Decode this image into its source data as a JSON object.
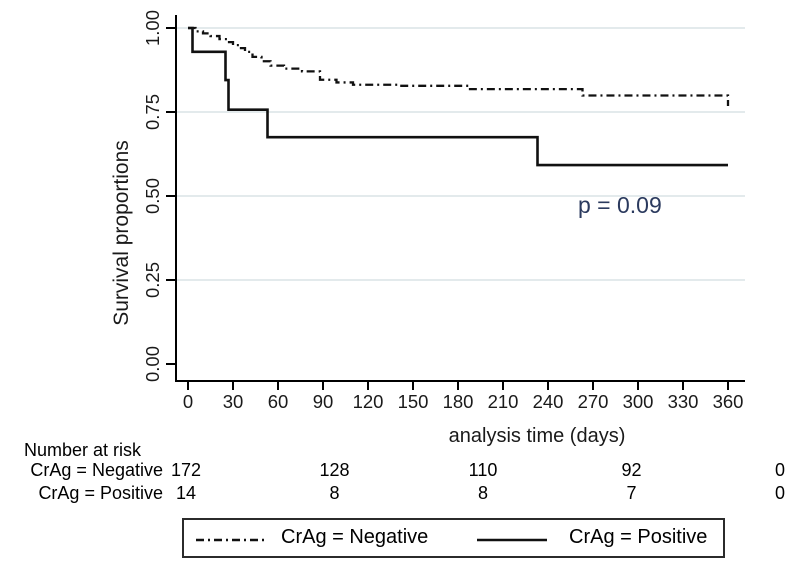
{
  "chart_data": {
    "type": "line",
    "subtype": "kaplan-meier-step",
    "title": "",
    "xlabel": "analysis time (days)",
    "ylabel": "Survival proportions",
    "xlim": [
      0,
      360
    ],
    "ylim": [
      0.0,
      1.0
    ],
    "x_ticks": [
      0,
      30,
      60,
      90,
      120,
      150,
      180,
      210,
      240,
      270,
      300,
      330,
      360
    ],
    "y_ticks": [
      "0.00",
      "0.25",
      "0.50",
      "0.75",
      "1.00"
    ],
    "grid": "horizontal-light",
    "legend_position": "bottom",
    "annotation": {
      "text": "p = 0.09",
      "color": "#2b3a5e"
    },
    "series": [
      {
        "name": "CrAg = Negative",
        "line_style": "dash-dot",
        "color": "#111111",
        "points": [
          [
            0,
            1.0
          ],
          [
            5,
            0.99
          ],
          [
            10,
            0.984
          ],
          [
            15,
            0.976
          ],
          [
            21,
            0.967
          ],
          [
            26,
            0.958
          ],
          [
            30,
            0.949
          ],
          [
            34,
            0.94
          ],
          [
            38,
            0.929
          ],
          [
            43,
            0.914
          ],
          [
            49,
            0.901
          ],
          [
            55,
            0.888
          ],
          [
            64,
            0.879
          ],
          [
            76,
            0.871
          ],
          [
            88,
            0.846
          ],
          [
            99,
            0.838
          ],
          [
            110,
            0.831
          ],
          [
            140,
            0.828
          ],
          [
            188,
            0.818
          ],
          [
            263,
            0.799
          ],
          [
            357,
            0.799
          ],
          [
            360,
            0.768
          ]
        ]
      },
      {
        "name": "CrAg = Positive",
        "line_style": "solid",
        "color": "#111111",
        "points": [
          [
            0,
            1.0
          ],
          [
            3,
            0.929
          ],
          [
            25,
            0.845
          ],
          [
            27,
            0.757
          ],
          [
            53,
            0.675
          ],
          [
            233,
            0.592
          ],
          [
            360,
            0.592
          ]
        ]
      }
    ]
  },
  "risk_table": {
    "header": "Number at risk",
    "times": [
      0,
      90,
      180,
      270,
      360
    ],
    "rows": [
      {
        "label": "CrAg = Negative",
        "counts": [
          "172",
          "128",
          "110",
          "92",
          "0"
        ]
      },
      {
        "label": "CrAg = Positive",
        "counts": [
          "14",
          "8",
          "8",
          "7",
          "0"
        ]
      }
    ]
  },
  "legend": {
    "items": [
      {
        "label": "CrAg = Negative",
        "line_style": "dash-dot"
      },
      {
        "label": "CrAg = Positive",
        "line_style": "solid"
      }
    ]
  },
  "colors": {
    "curve": "#111111",
    "grid": "#e3eaec",
    "axis": "#000000",
    "p_value": "#2b3a5e",
    "legend_border": "#2b2b2b"
  }
}
